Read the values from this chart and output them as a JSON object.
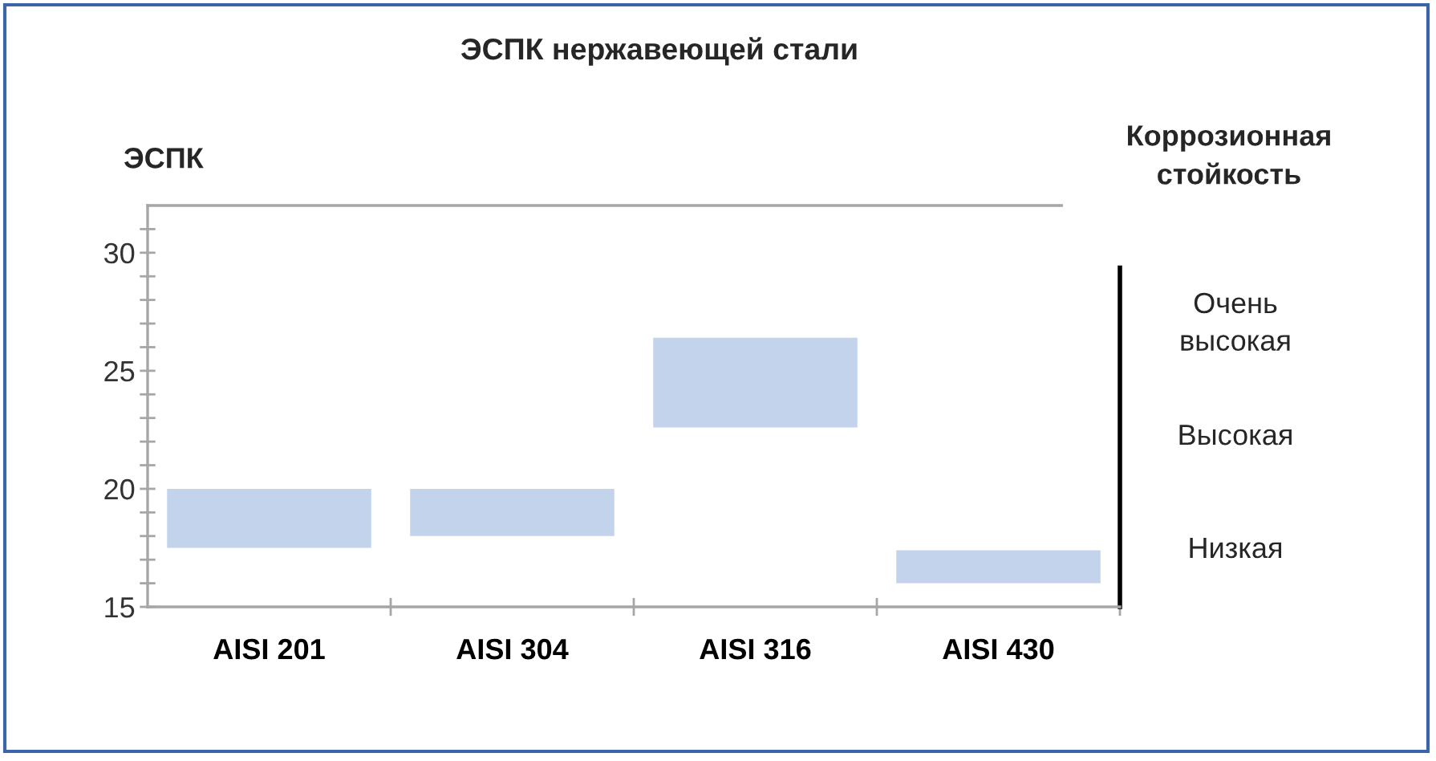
{
  "chart_data": {
    "type": "bar",
    "title": "ЭСПК нержавеющей стали",
    "ylabel": "ЭСПК",
    "y2label": "Коррозионная стойкость",
    "categories": [
      "AISI 201",
      "AISI 304",
      "AISI 316",
      "AISI 430"
    ],
    "base": [
      17.5,
      18,
      22.6,
      16
    ],
    "values": [
      2.5,
      2,
      3.8,
      1.4
    ],
    "color": "#c3d3ec",
    "ylim": [
      15,
      32
    ],
    "yticks": [
      15,
      {
        "value": 16,
        "label": null
      },
      {
        "value": 17,
        "label": null
      },
      {
        "value": 18,
        "label": null
      },
      {
        "value": 19,
        "label": null
      },
      20,
      {
        "value": 21,
        "label": null
      },
      {
        "value": 22,
        "label": null
      },
      {
        "value": 23,
        "label": null
      },
      {
        "value": 24,
        "label": null
      },
      25,
      {
        "value": 26,
        "label": null
      },
      {
        "value": 27,
        "label": null
      },
      {
        "value": 28,
        "label": null
      },
      {
        "value": 29,
        "label": null
      },
      30,
      {
        "value": 31,
        "label": null
      }
    ],
    "annotations": [
      "Очень высокая",
      "Высокая",
      "Низкая"
    ]
  }
}
